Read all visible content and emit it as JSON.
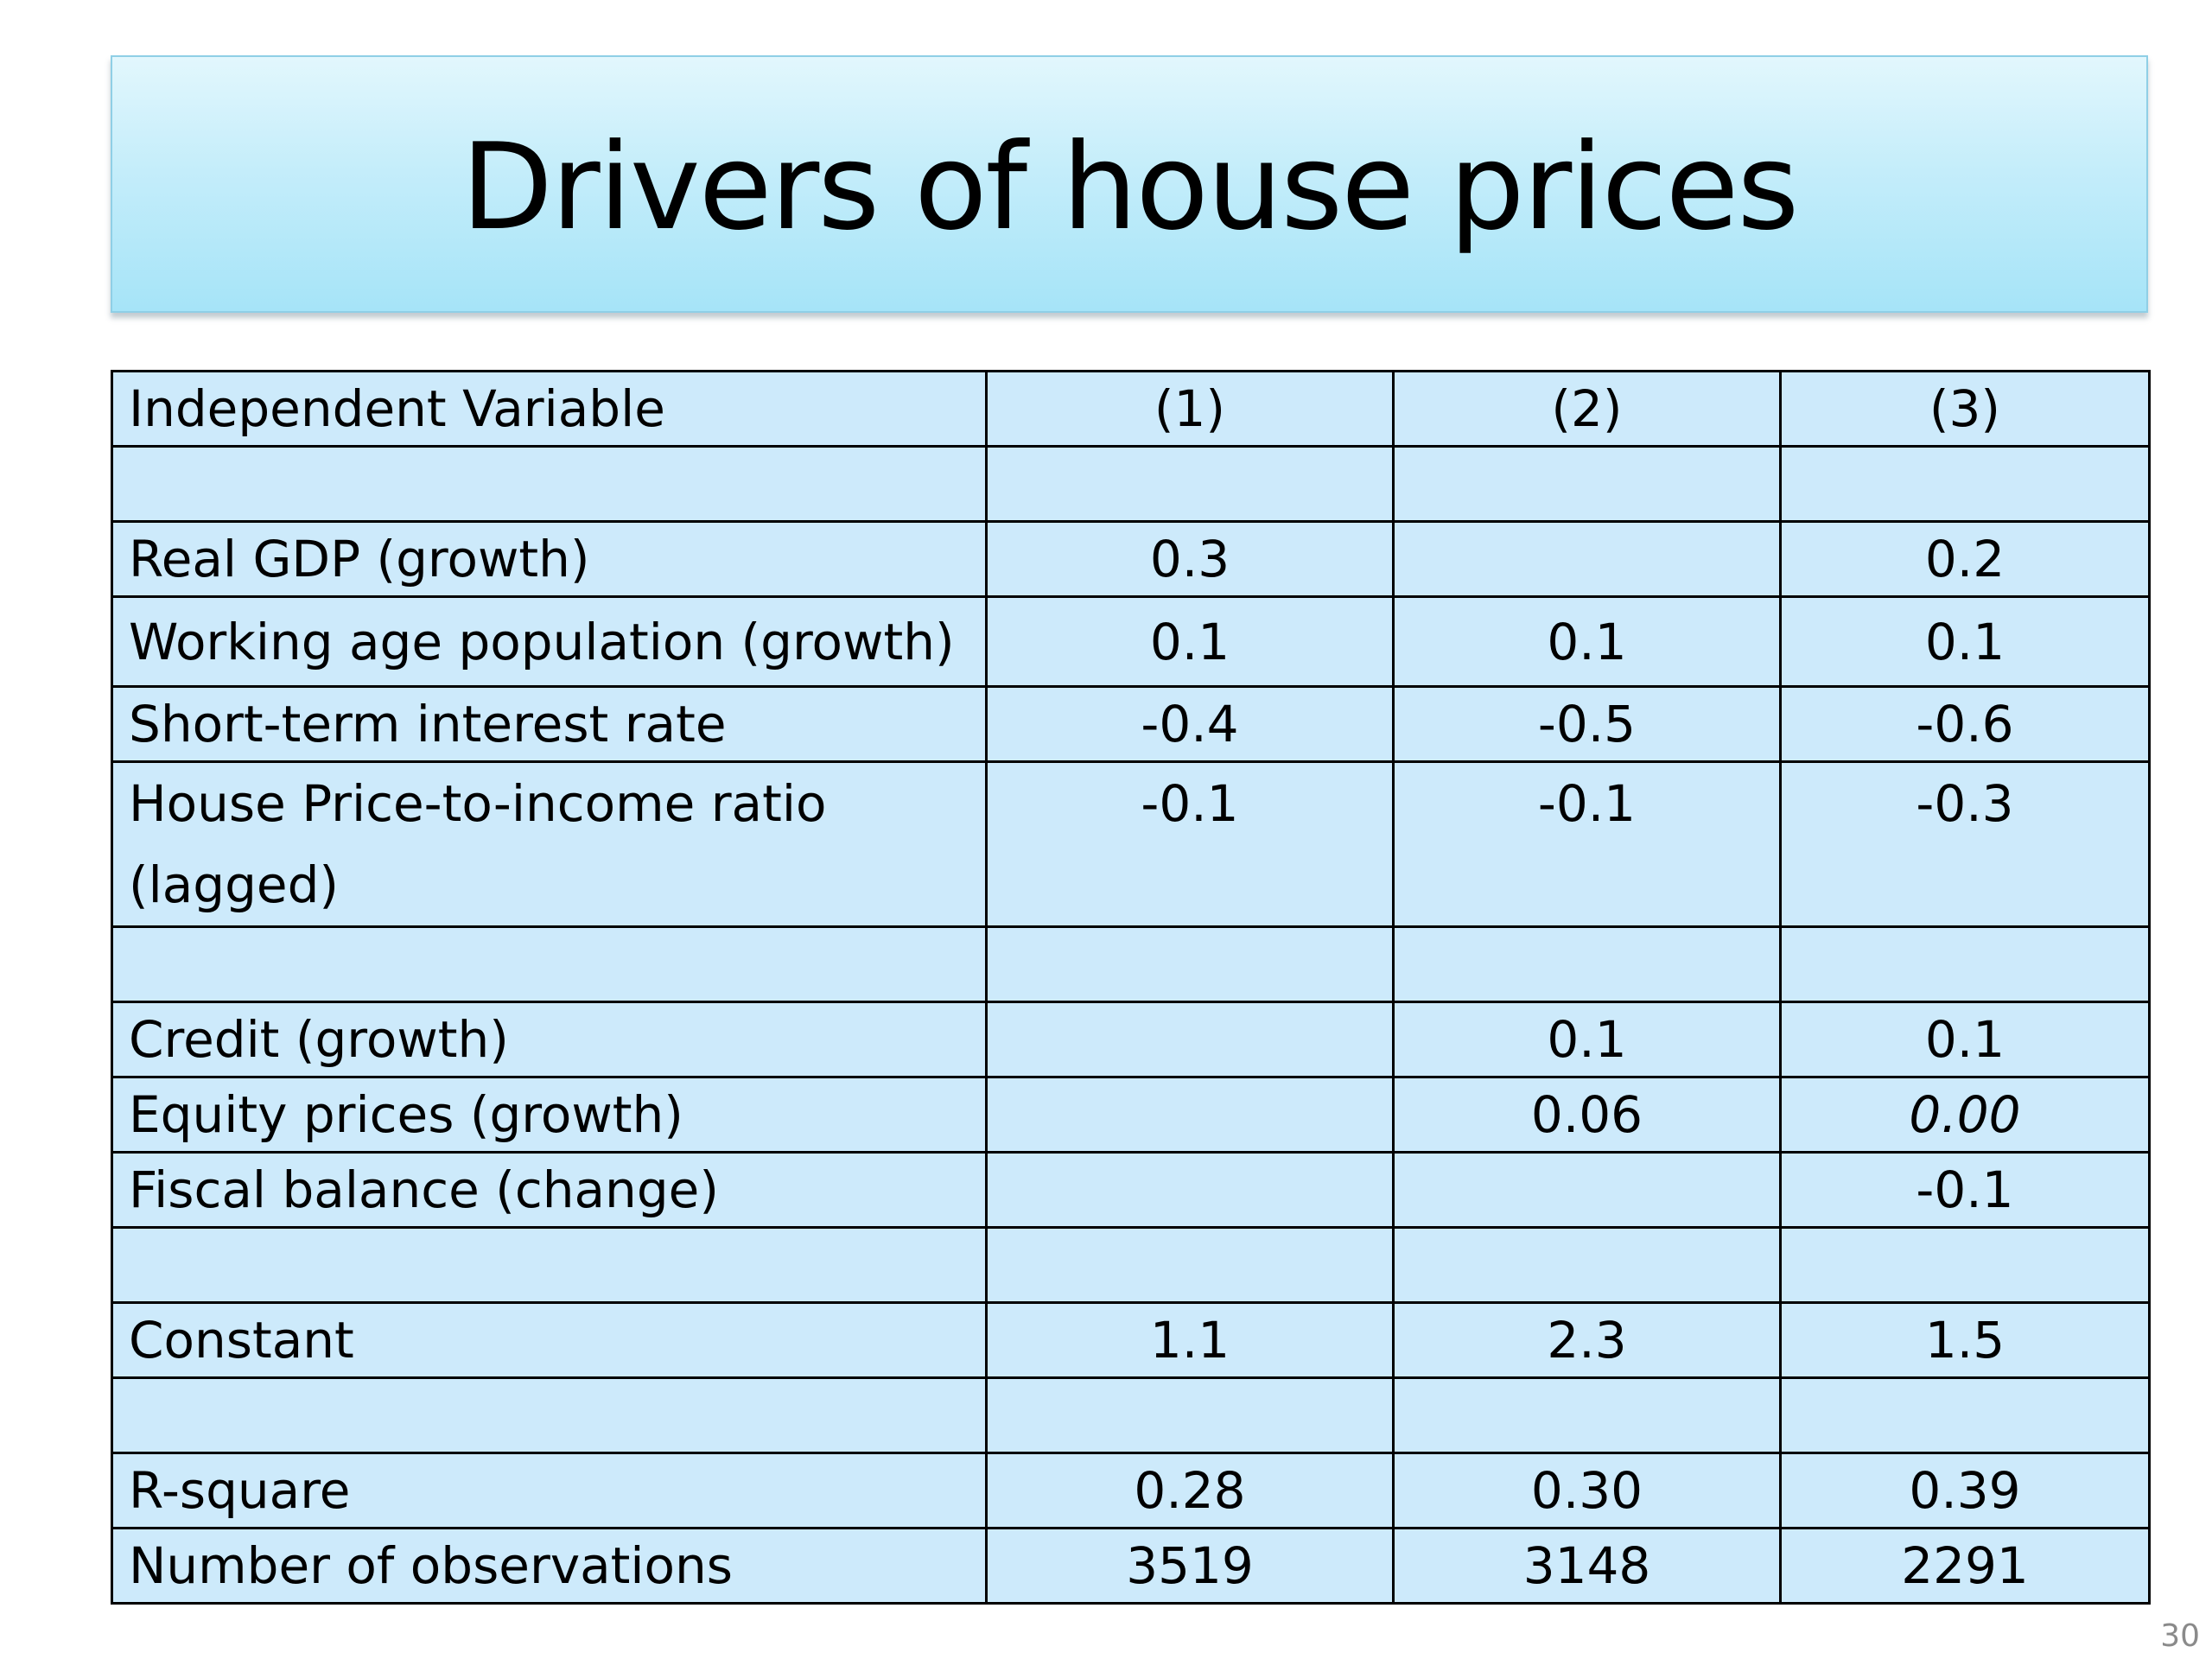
{
  "slide": {
    "title": "Drivers of house prices",
    "page_number": "30"
  },
  "table": {
    "header": {
      "label": "Independent Variable",
      "col1": "(1)",
      "col2": "(2)",
      "col3": "(3)"
    },
    "rows": [
      {
        "label": "",
        "col1": "",
        "col2": "",
        "col3": ""
      },
      {
        "label": "Real GDP (growth)",
        "col1": "0.3",
        "col2": "",
        "col3": "0.2"
      },
      {
        "label": "Working age population (growth)",
        "col1": "0.1",
        "col2": "0.1",
        "col3": "0.1"
      },
      {
        "label": "Short-term interest rate",
        "col1": "-0.4",
        "col2": "-0.5",
        "col3": "-0.6"
      },
      {
        "label": "House Price-to-income ratio (lagged)",
        "col1": "-0.1",
        "col2": "-0.1",
        "col3": "-0.3"
      },
      {
        "label": "",
        "col1": "",
        "col2": "",
        "col3": ""
      },
      {
        "label": "Credit (growth)",
        "col1": "",
        "col2": "0.1",
        "col3": "0.1"
      },
      {
        "label": "Equity prices (growth)",
        "col1": "",
        "col2": "0.06",
        "col3": "0.00"
      },
      {
        "label": "Fiscal balance (change)",
        "col1": "",
        "col2": "",
        "col3": "-0.1"
      },
      {
        "label": "",
        "col1": "",
        "col2": "",
        "col3": ""
      },
      {
        "label": "Constant",
        "col1": "1.1",
        "col2": "2.3",
        "col3": "1.5"
      },
      {
        "label": "",
        "col1": "",
        "col2": "",
        "col3": ""
      },
      {
        "label": "R-square",
        "col1": "0.28",
        "col2": "0.30",
        "col3": "0.39"
      },
      {
        "label": "Number of observations",
        "col1": "3519",
        "col2": "3148",
        "col3": "2291"
      }
    ]
  },
  "colors": {
    "title_gradient_top": "#e2f7fd",
    "title_gradient_bottom": "#a6e4f8",
    "table_fill": "#cdeafb",
    "border": "#000000"
  }
}
